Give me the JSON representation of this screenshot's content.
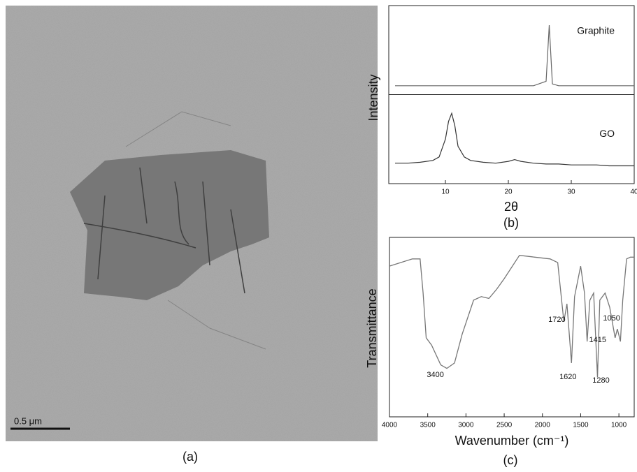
{
  "image": {
    "scale_label": "0.5 μm",
    "caption": "(a)"
  },
  "chart_data": [
    {
      "type": "stacked-line",
      "y_label": "Intensity",
      "x_label": "2θ",
      "caption": "(b)",
      "xlim": [
        1,
        40
      ],
      "xticks": [
        10,
        20,
        30,
        40
      ],
      "ylim": [
        0,
        1
      ],
      "x": [
        2,
        4,
        6,
        8,
        9,
        10,
        10.5,
        11,
        11.5,
        12,
        13,
        14,
        16,
        18,
        20,
        21,
        22,
        24,
        26,
        26.5,
        27,
        28,
        30,
        32,
        34,
        36,
        38,
        40
      ],
      "series": [
        {
          "name": "Graphite",
          "color": "#666666",
          "values": [
            0.1,
            0.1,
            0.1,
            0.1,
            0.1,
            0.1,
            0.1,
            0.1,
            0.1,
            0.1,
            0.1,
            0.1,
            0.1,
            0.1,
            0.1,
            0.1,
            0.1,
            0.1,
            0.15,
            0.78,
            0.12,
            0.1,
            0.1,
            0.1,
            0.1,
            0.1,
            0.1,
            0.1
          ]
        },
        {
          "name": "GO",
          "color": "#333333",
          "values": [
            0.23,
            0.23,
            0.24,
            0.26,
            0.3,
            0.5,
            0.7,
            0.79,
            0.65,
            0.42,
            0.3,
            0.26,
            0.24,
            0.23,
            0.25,
            0.27,
            0.25,
            0.23,
            0.22,
            0.22,
            0.22,
            0.22,
            0.21,
            0.21,
            0.21,
            0.2,
            0.2,
            0.2
          ]
        }
      ]
    },
    {
      "type": "line",
      "y_label": "Transmittance",
      "x_label": "Wavenumber (cm⁻¹)",
      "caption": "(c)",
      "xlim": [
        4000,
        800
      ],
      "xticks": [
        4000,
        3500,
        3000,
        2500,
        2000,
        1500,
        1000
      ],
      "ylim": [
        0,
        100
      ],
      "color": "#777777",
      "x": [
        4000,
        3700,
        3600,
        3560,
        3520,
        3450,
        3330,
        3250,
        3150,
        3050,
        2900,
        2800,
        2700,
        2600,
        2500,
        2300,
        2100,
        1900,
        1800,
        1720,
        1680,
        1620,
        1580,
        1500,
        1450,
        1415,
        1380,
        1330,
        1280,
        1250,
        1180,
        1120,
        1050,
        1020,
        980,
        950,
        900,
        850,
        800
      ],
      "values": [
        84,
        88,
        88,
        69,
        44,
        40,
        29,
        27,
        30,
        46,
        65,
        67,
        66,
        71,
        77,
        90,
        89,
        88,
        86,
        53,
        63,
        30,
        67,
        84,
        69,
        42,
        65,
        69,
        22,
        65,
        69,
        61,
        44,
        49,
        42,
        65,
        88,
        89,
        89
      ],
      "annotations": [
        {
          "label": "3400",
          "x": 3400
        },
        {
          "label": "1720",
          "x": 1720
        },
        {
          "label": "1620",
          "x": 1620
        },
        {
          "label": "1415",
          "x": 1415
        },
        {
          "label": "1280",
          "x": 1280
        },
        {
          "label": "1050",
          "x": 1050
        }
      ]
    }
  ]
}
